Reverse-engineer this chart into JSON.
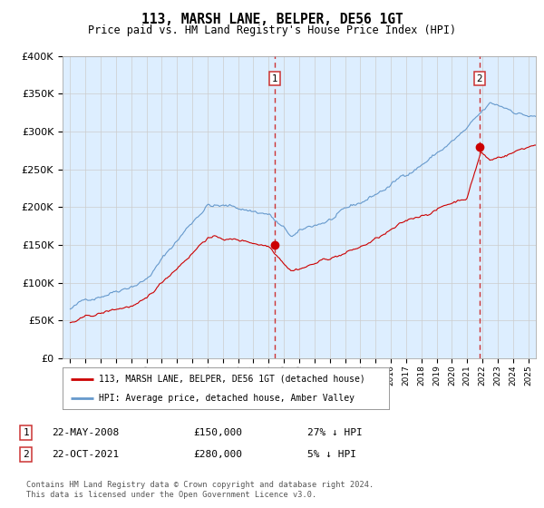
{
  "title": "113, MARSH LANE, BELPER, DE56 1GT",
  "subtitle": "Price paid vs. HM Land Registry's House Price Index (HPI)",
  "legend_line1": "113, MARSH LANE, BELPER, DE56 1GT (detached house)",
  "legend_line2": "HPI: Average price, detached house, Amber Valley",
  "footnote1": "Contains HM Land Registry data © Crown copyright and database right 2024.",
  "footnote2": "This data is licensed under the Open Government Licence v3.0.",
  "transactions": [
    {
      "label": "1",
      "date": "22-MAY-2008",
      "price": 150000,
      "note": "27% ↓ HPI",
      "x_year": 2008.38
    },
    {
      "label": "2",
      "date": "22-OCT-2021",
      "price": 280000,
      "note": "5% ↓ HPI",
      "x_year": 2021.8
    }
  ],
  "hpi_color": "#6699cc",
  "price_color": "#cc0000",
  "dot_color": "#cc0000",
  "vline_color": "#cc3333",
  "plot_bg_color": "#ddeeff",
  "ylim": [
    0,
    400000
  ],
  "yticks": [
    0,
    50000,
    100000,
    150000,
    200000,
    250000,
    300000,
    350000,
    400000
  ],
  "xlim_start": 1994.5,
  "xlim_end": 2025.5,
  "background_color": "#ffffff"
}
